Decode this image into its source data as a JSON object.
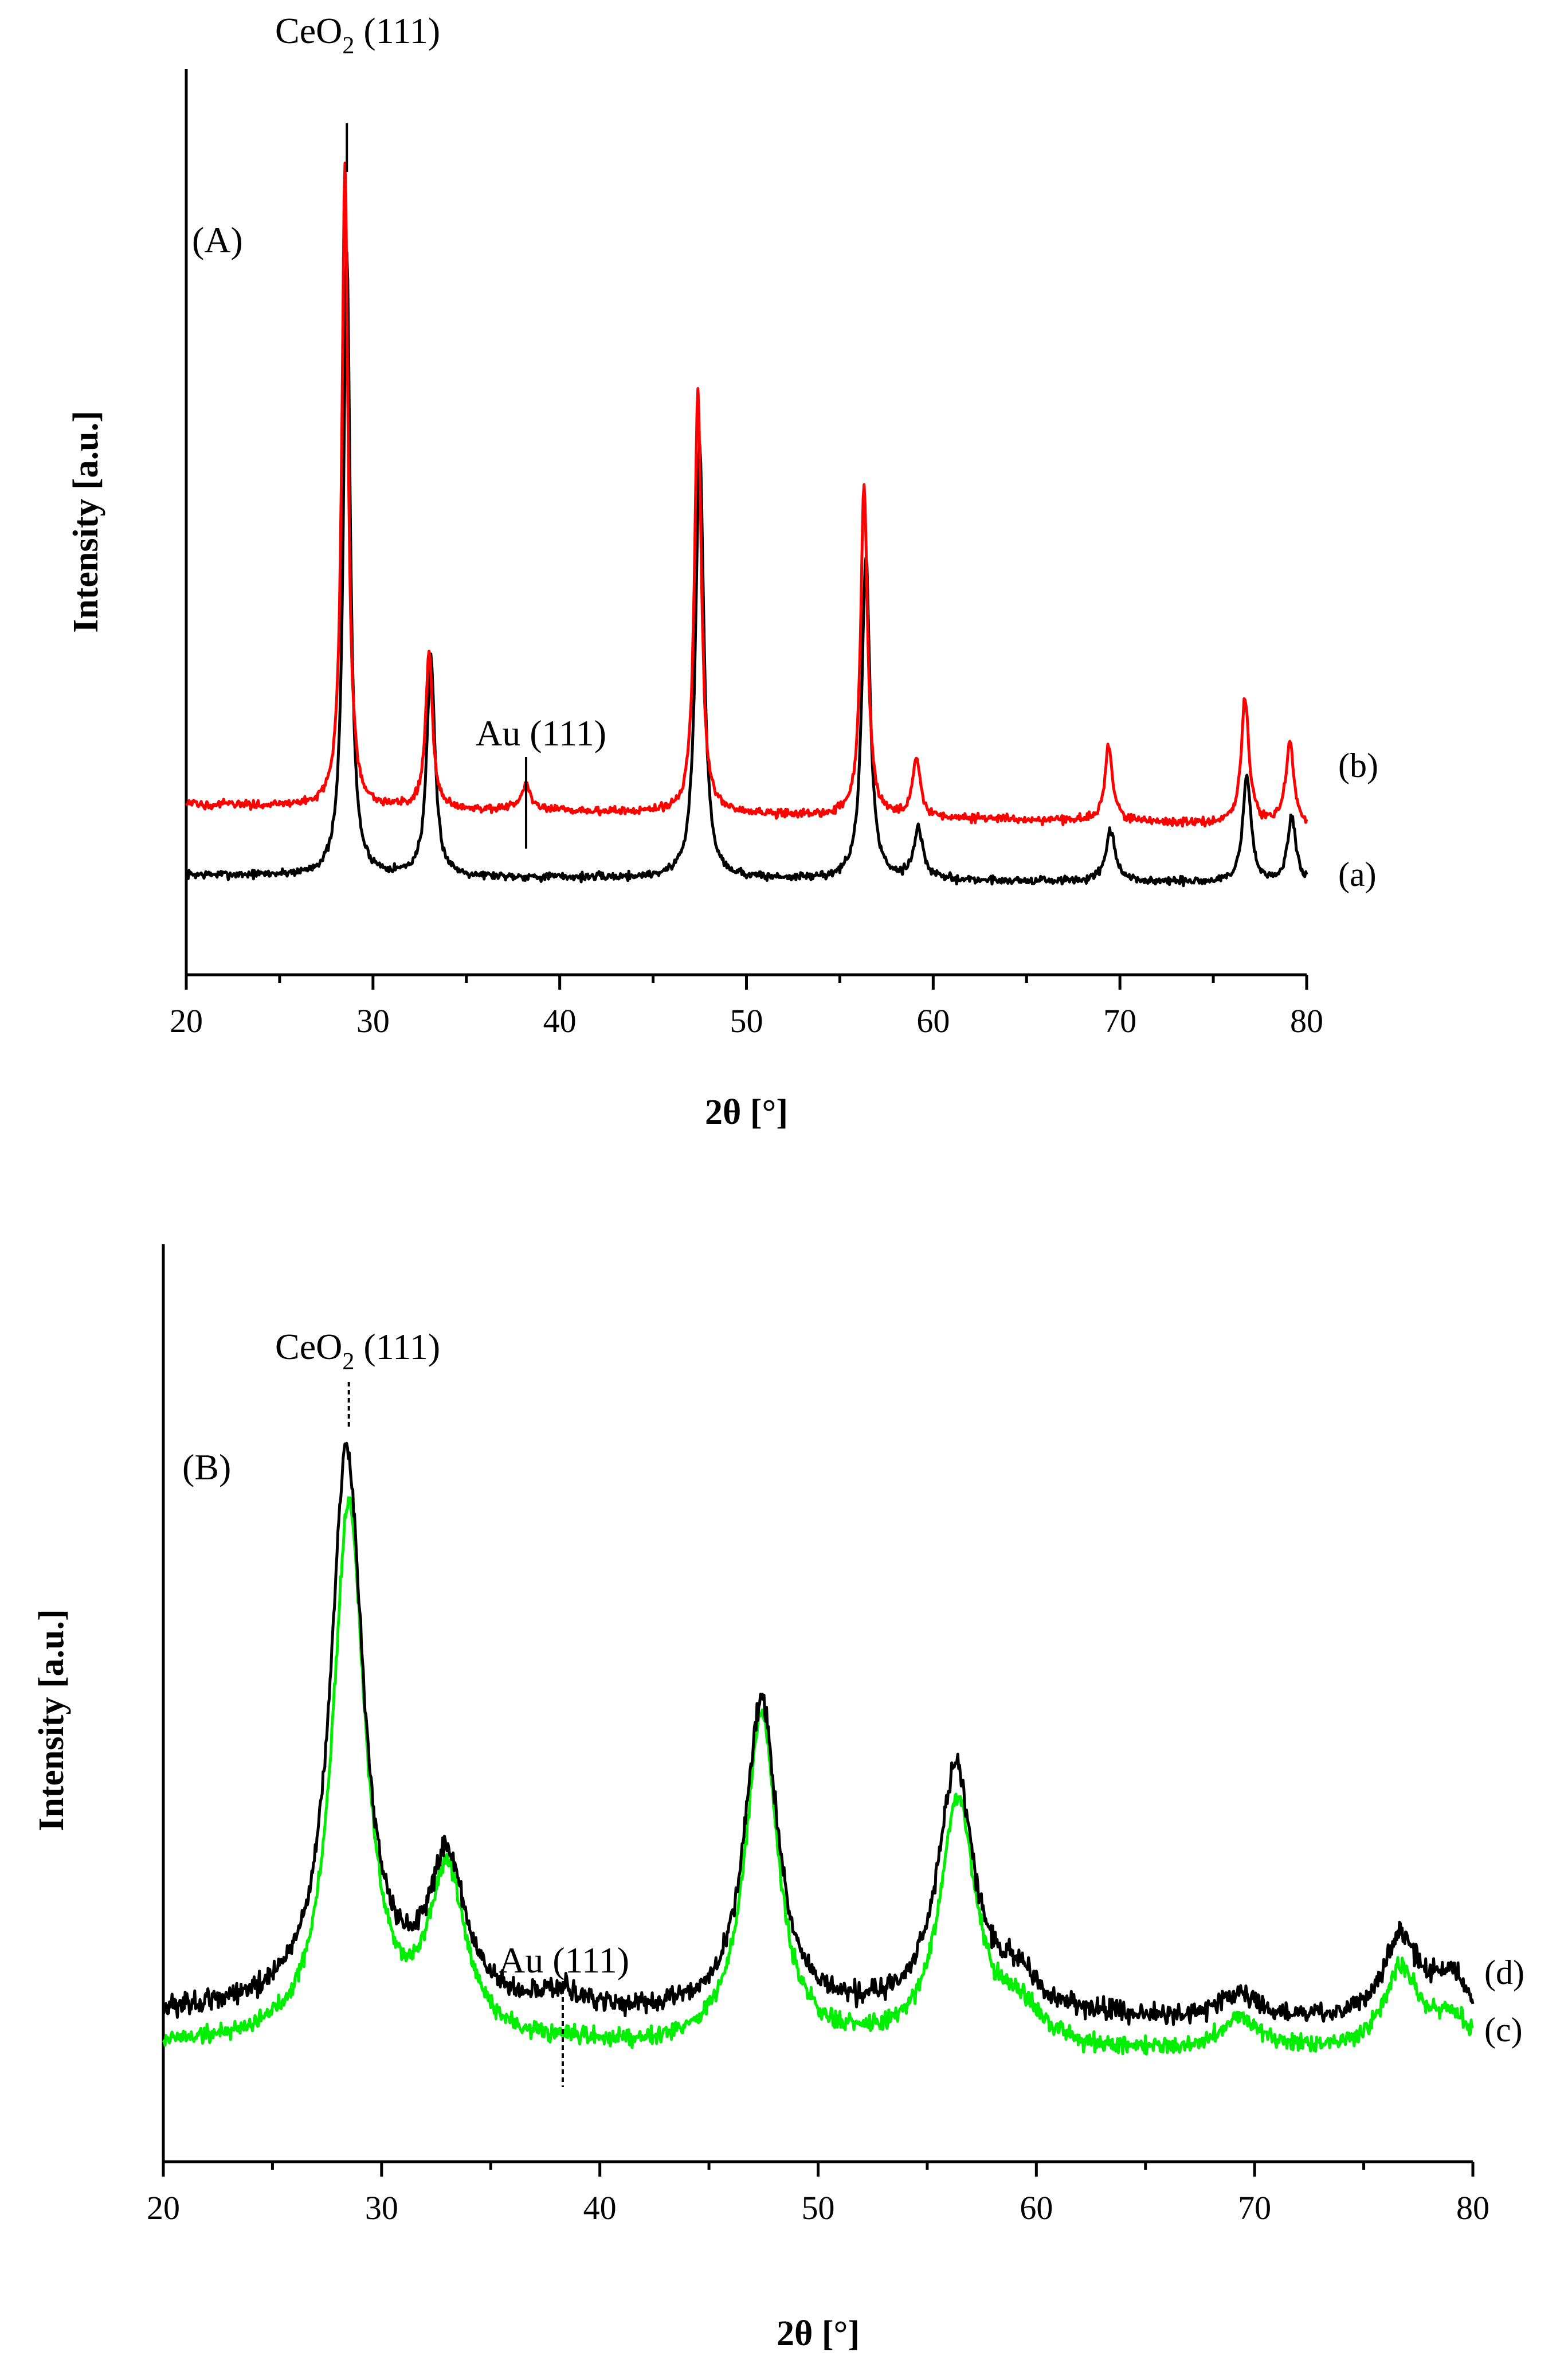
{
  "chart_data": [
    {
      "type": "line",
      "panel_label": "(A)",
      "xlabel": "2θ [°]",
      "ylabel": "Intensity [a.u.]",
      "xlim": [
        20,
        80
      ],
      "ylim": [
        0,
        100
      ],
      "xticks": [
        "20",
        "30",
        "40",
        "50",
        "60",
        "70",
        "80"
      ],
      "annotations": [
        {
          "text": "CeO",
          "sub": "2",
          "tail": " (111)",
          "x": 28.6,
          "line_style": "solid"
        },
        {
          "text": "Au (111)",
          "sub": "",
          "tail": "",
          "x": 38.2,
          "line_style": "solid"
        }
      ],
      "series": [
        {
          "name": "(a)",
          "color": "#000000",
          "baseline": 12,
          "noise": 0.5,
          "slope": -1.0,
          "peaks": [
            [
              28.6,
              75,
              0.22
            ],
            [
              33.1,
              26,
              0.26
            ],
            [
              47.5,
              52,
              0.26
            ],
            [
              56.4,
              39,
              0.26
            ],
            [
              59.2,
              6,
              0.3
            ],
            [
              69.5,
              6,
              0.3
            ],
            [
              76.8,
              13,
              0.26
            ],
            [
              79.2,
              8,
              0.26
            ]
          ]
        },
        {
          "name": "(b)",
          "color": "#ff0000",
          "baseline": 20.5,
          "noise": 0.5,
          "slope": -2.5,
          "peaks": [
            [
              28.5,
              77,
              0.2
            ],
            [
              33.0,
              19,
              0.22
            ],
            [
              38.2,
              3,
              0.3
            ],
            [
              47.4,
              51,
              0.22
            ],
            [
              56.3,
              40,
              0.22
            ],
            [
              59.1,
              7,
              0.25
            ],
            [
              69.4,
              9,
              0.25
            ],
            [
              76.7,
              15,
              0.25
            ],
            [
              79.1,
              10,
              0.25
            ]
          ]
        }
      ]
    },
    {
      "type": "line",
      "panel_label": "(B)",
      "xlabel": "2θ [°]",
      "ylabel": "Intensity [a.u.]",
      "xlim": [
        20,
        80
      ],
      "ylim": [
        0,
        100
      ],
      "xticks": [
        "20",
        "30",
        "40",
        "50",
        "60",
        "70",
        "80"
      ],
      "annotations": [
        {
          "text": "CeO",
          "sub": "2",
          "tail": " (111)",
          "x": 28.5,
          "line_style": "dashed"
        },
        {
          "text": "Au (111)",
          "sub": "",
          "tail": "",
          "x": 38.3,
          "line_style": "dashed"
        }
      ],
      "series": [
        {
          "name": "(c)",
          "color": "#00ee00",
          "baseline": 14,
          "noise": 1.1,
          "slope": -1.2,
          "peaks": [
            [
              28.5,
              65,
              0.9
            ],
            [
              33.0,
              20,
              1.0
            ],
            [
              47.4,
              40,
              0.9
            ],
            [
              56.4,
              30,
              1.0
            ],
            [
              59.2,
              4,
              1.1
            ],
            [
              69.4,
              4,
              1.1
            ],
            [
              76.7,
              10,
              1.0
            ],
            [
              79.0,
              4,
              1.0
            ]
          ]
        },
        {
          "name": "(d)",
          "color": "#000000",
          "baseline": 18,
          "noise": 1.3,
          "slope": -1.4,
          "peaks": [
            [
              28.4,
              68,
              0.9
            ],
            [
              33.0,
              18,
              1.0
            ],
            [
              38.2,
              2,
              1.2
            ],
            [
              47.4,
              38,
              0.9
            ],
            [
              56.3,
              30,
              1.0
            ],
            [
              59.1,
              4,
              1.1
            ],
            [
              69.3,
              3,
              1.1
            ],
            [
              76.7,
              10,
              1.0
            ],
            [
              79.0,
              5,
              1.0
            ]
          ]
        }
      ]
    }
  ]
}
